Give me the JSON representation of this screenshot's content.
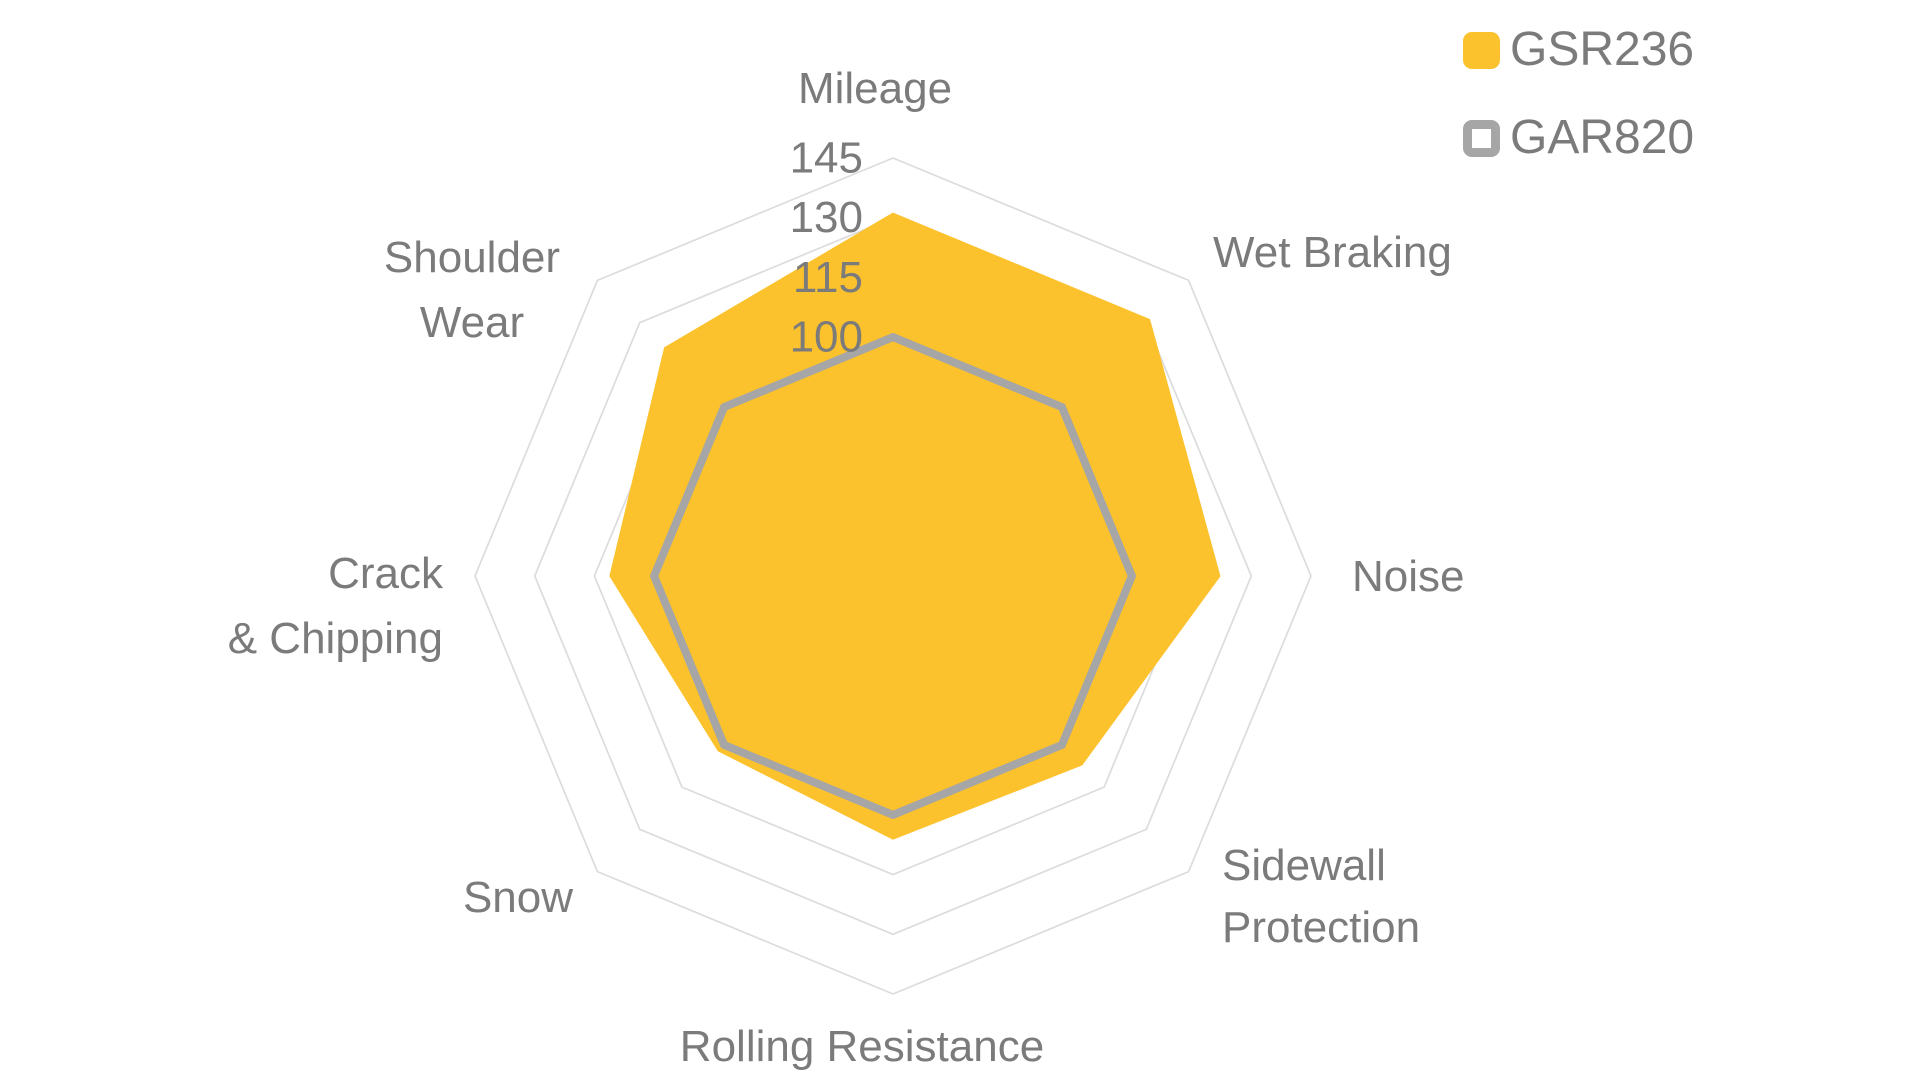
{
  "page": {
    "background_color": "#ffffff",
    "text_color": "#7b7b7b",
    "grid_color": "#dcdcdc"
  },
  "chart_data": {
    "type": "radar",
    "title": "",
    "categories": [
      "Mileage",
      "Wet Braking",
      "Noise",
      "Sidewall Protection",
      "Rolling Resistance",
      "Snow",
      "Crack & Chipping",
      "Shoulder Wear"
    ],
    "category_label_lines": [
      [
        "Mileage"
      ],
      [
        "Wet Braking"
      ],
      [
        "Noise"
      ],
      [
        "Sidewall",
        "Protection"
      ],
      [
        "Rolling Resistance"
      ],
      [
        "Snow"
      ],
      [
        "Crack",
        "& Chipping"
      ],
      [
        "Shoulder",
        "Wear"
      ]
    ],
    "series": [
      {
        "name": "GSR236",
        "values": [
          131,
          131,
          122,
          107,
          106,
          102,
          111,
          121
        ],
        "color": "#FCC22D",
        "style": "filled"
      },
      {
        "name": "GAR820",
        "values": [
          100,
          100,
          100,
          100,
          100,
          100,
          100,
          100
        ],
        "color": "#A6A6A6",
        "style": "outline"
      }
    ],
    "axis_range": [
      40,
      145
    ],
    "gridline_values": [
      55,
      70,
      85,
      100,
      115,
      130,
      145
    ],
    "tick_labels_shown": [
      "145",
      "130",
      "115",
      "100"
    ],
    "grid": true,
    "spokes": false,
    "legend_position": "top-right"
  },
  "legend": {
    "items": [
      {
        "label": "GSR236",
        "swatch": "filled",
        "color": "#FCC22D"
      },
      {
        "label": "GAR820",
        "swatch": "outline",
        "color": "#A6A6A6"
      }
    ]
  }
}
